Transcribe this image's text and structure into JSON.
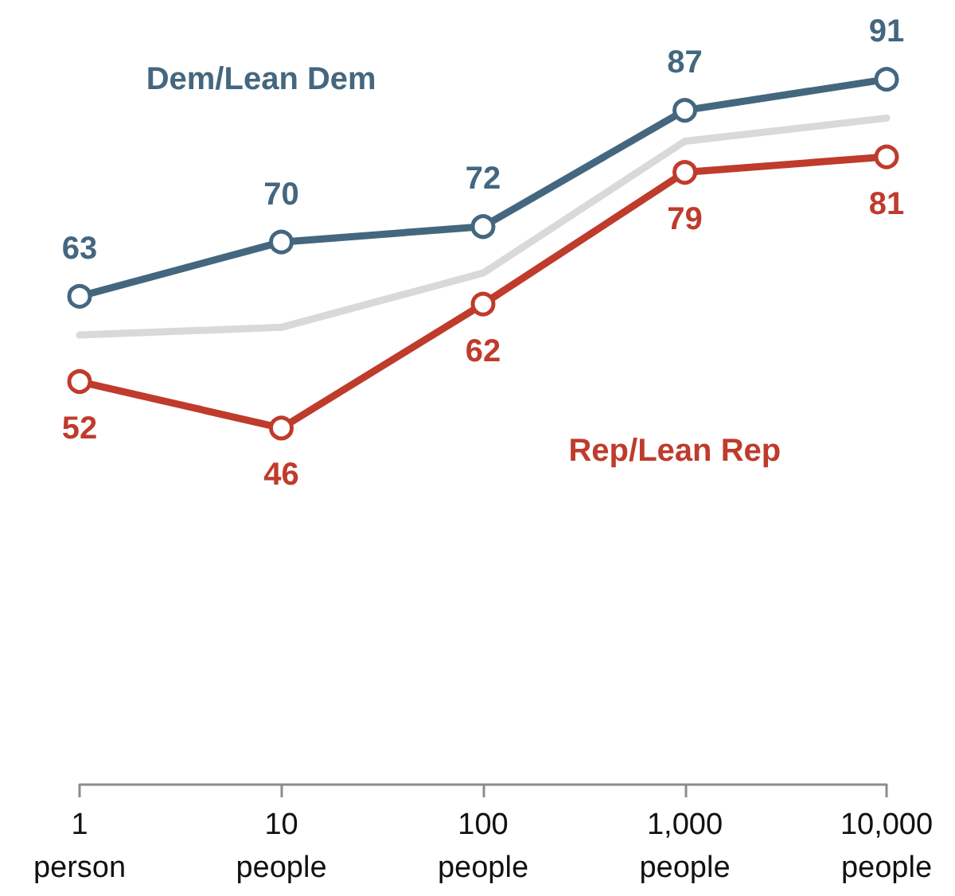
{
  "chart_data": {
    "type": "line",
    "categories": [
      "1\nperson",
      "10\npeople",
      "100\npeople",
      "1,000\npeople",
      "10,000\npeople"
    ],
    "tick_labels": "x",
    "grid": false,
    "legend": false,
    "marker": "circle",
    "line_style": "solid",
    "series": [
      {
        "color": "#d9d9d9",
        "values": [
          58,
          59,
          66,
          83,
          86
        ],
        "marker": "none"
      },
      {
        "name": "Dem/Lean Dem",
        "color": "#44677f",
        "values": [
          63,
          70,
          72,
          87,
          91
        ],
        "value_labels": [
          "63",
          "70",
          "72",
          "87",
          "91"
        ]
      },
      {
        "name": "Rep/Lean Rep",
        "color": "#bf3b2c",
        "values": [
          52,
          46,
          62,
          79,
          81
        ],
        "value_labels": [
          "52",
          "46",
          "62",
          "79",
          "81"
        ]
      }
    ]
  }
}
